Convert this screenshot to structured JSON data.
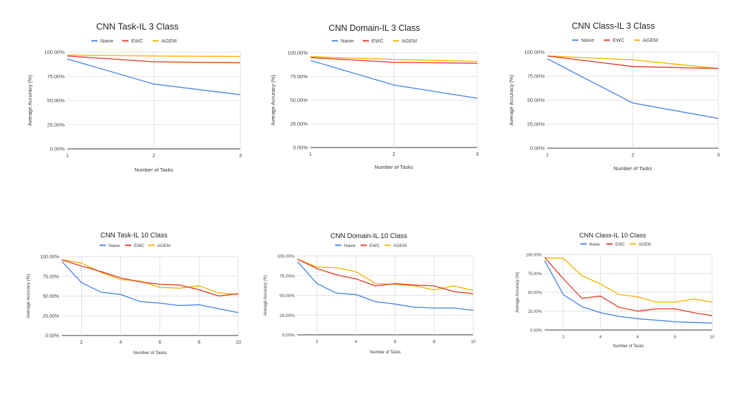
{
  "colors": {
    "naive": "#4a86e8",
    "ewc": "#e23e2e",
    "agem": "#f4b400",
    "grid": "#d9d9d9"
  },
  "chart_data": [
    {
      "type": "line",
      "title": "CNN Task-IL 3 Class",
      "xlabel": "Number of Tasks",
      "ylabel": "Average Accuracy (%)",
      "x": [
        1,
        2,
        3
      ],
      "xticks": [
        "1",
        "2",
        "3"
      ],
      "ylim": [
        0,
        100
      ],
      "yticks": [
        "0.00%",
        "25.00%",
        "50.00%",
        "75.00%",
        "100.00%"
      ],
      "legend": "top",
      "grid": true,
      "series": [
        {
          "name": "Naive",
          "values": [
            93,
            67,
            56
          ]
        },
        {
          "name": "EWC",
          "values": [
            96,
            90,
            89
          ]
        },
        {
          "name": "AGEM",
          "values": [
            97,
            96,
            95.5
          ]
        }
      ]
    },
    {
      "type": "line",
      "title": "CNN Domain-IL 3 Class",
      "xlabel": "Number of Tasks",
      "ylabel": "Average Accuracy (%)",
      "x": [
        1,
        2,
        3
      ],
      "xticks": [
        "1",
        "2",
        "3"
      ],
      "ylim": [
        0,
        100
      ],
      "yticks": [
        "0.00%",
        "25.00%",
        "50.00%",
        "75.00%",
        "100.00%"
      ],
      "legend": "top",
      "grid": true,
      "series": [
        {
          "name": "Naive",
          "values": [
            92,
            66,
            52
          ]
        },
        {
          "name": "EWC",
          "values": [
            95,
            90,
            89
          ]
        },
        {
          "name": "AGEM",
          "values": [
            96,
            93,
            91
          ]
        }
      ]
    },
    {
      "type": "line",
      "title": "CNN Class-IL 3 Class",
      "xlabel": "Number of Tasks",
      "ylabel": "Average Accuracy (%)",
      "x": [
        1,
        2,
        3
      ],
      "xticks": [
        "1",
        "2",
        "3"
      ],
      "ylim": [
        0,
        100
      ],
      "yticks": [
        "0.00%",
        "25.00%",
        "50.00%",
        "75.00%",
        "100.00%"
      ],
      "legend": "top",
      "grid": true,
      "series": [
        {
          "name": "Naive",
          "values": [
            93,
            47,
            31
          ]
        },
        {
          "name": "EWC",
          "values": [
            96,
            85,
            83
          ]
        },
        {
          "name": "AGEM",
          "values": [
            96,
            92,
            83
          ]
        }
      ]
    },
    {
      "type": "line",
      "title": "CNN Task-IL 10 Class",
      "xlabel": "Number of Tasks",
      "ylabel": "Average Accuracy (%)",
      "x": [
        1,
        2,
        3,
        4,
        5,
        6,
        7,
        8,
        9,
        10
      ],
      "xticks": [
        "2",
        "4",
        "6",
        "8",
        "10"
      ],
      "ylim": [
        0,
        100
      ],
      "yticks": [
        "0.00%",
        "25.00%",
        "50.00%",
        "75.00%",
        "100.00%"
      ],
      "legend": "top",
      "grid": true,
      "series": [
        {
          "name": "Naive",
          "values": [
            94,
            67,
            55,
            52,
            43,
            41,
            38,
            39,
            34,
            29
          ]
        },
        {
          "name": "EWC",
          "values": [
            96,
            88,
            81,
            73,
            68,
            65,
            64,
            58,
            50,
            53
          ]
        },
        {
          "name": "AGEM",
          "values": [
            96,
            92,
            80,
            71,
            69,
            61,
            60,
            63,
            54,
            52
          ]
        }
      ]
    },
    {
      "type": "line",
      "title": "CNN Domain-IL 10 Class",
      "xlabel": "Number of Tasks",
      "ylabel": "Average Accuracy (%)",
      "x": [
        1,
        2,
        3,
        4,
        5,
        6,
        7,
        8,
        9,
        10
      ],
      "xticks": [
        "2",
        "4",
        "6",
        "8",
        "10"
      ],
      "ylim": [
        0,
        100
      ],
      "yticks": [
        "0.00%",
        "25.00%",
        "50.00%",
        "75.00%",
        "100.00%"
      ],
      "legend": "top",
      "grid": true,
      "series": [
        {
          "name": "Naive",
          "values": [
            93,
            65,
            53,
            51,
            42,
            39,
            35,
            34,
            34,
            31
          ]
        },
        {
          "name": "EWC",
          "values": [
            96,
            84,
            76,
            71,
            62,
            65,
            63,
            62,
            55,
            52
          ]
        },
        {
          "name": "AGEM",
          "values": [
            96,
            86,
            85,
            80,
            65,
            64,
            62,
            57,
            62,
            56
          ]
        }
      ]
    },
    {
      "type": "line",
      "title": "CNN Class-IL 10 Class",
      "xlabel": "Number of Tasks",
      "ylabel": "Average Accuracy (%)",
      "x": [
        1,
        2,
        3,
        4,
        5,
        6,
        7,
        8,
        9,
        10
      ],
      "xticks": [
        "2",
        "4",
        "6",
        "8",
        "10"
      ],
      "ylim": [
        0,
        100
      ],
      "yticks": [
        "0.00%",
        "25.00%",
        "50.00%",
        "75.00%",
        "100.00%"
      ],
      "legend": "top",
      "grid": true,
      "series": [
        {
          "name": "Naive",
          "values": [
            92,
            47,
            31,
            23,
            18,
            15,
            13,
            11,
            10,
            9
          ]
        },
        {
          "name": "EWC",
          "values": [
            96,
            68,
            42,
            45,
            30,
            25,
            28,
            28,
            23,
            19
          ]
        },
        {
          "name": "AGEM",
          "values": [
            96,
            95,
            72,
            61,
            47,
            44,
            37,
            37,
            41,
            37
          ]
        }
      ]
    }
  ]
}
